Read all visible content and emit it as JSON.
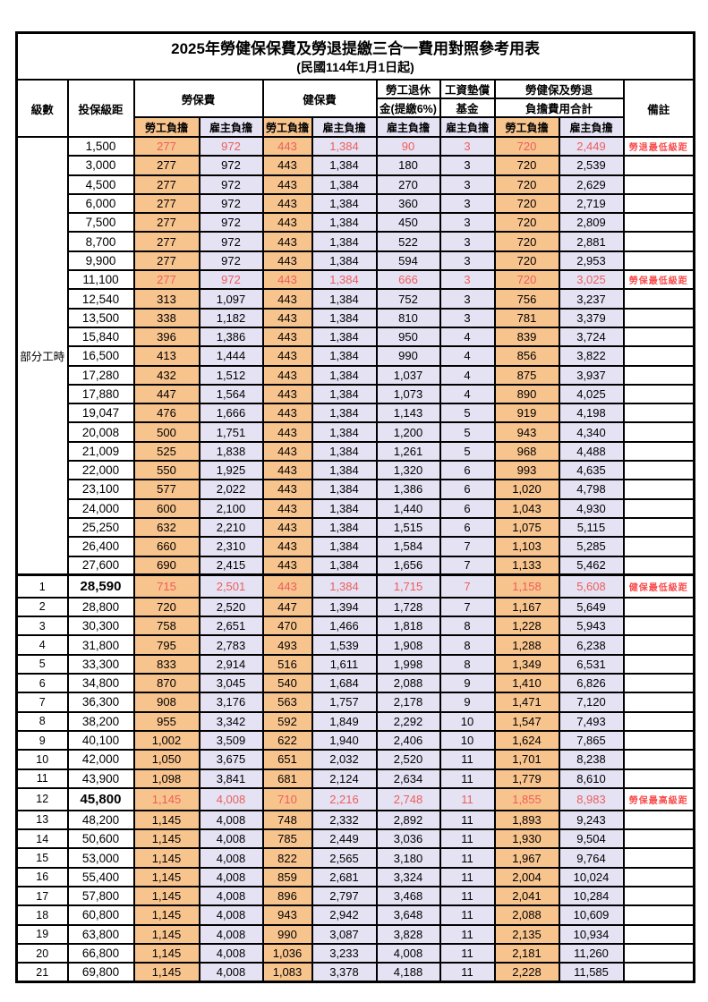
{
  "title": "2025年勞健保保費及勞退提繳三合一費用對照參考用表",
  "subtitle": "(民國114年1月1日起)",
  "header": {
    "level": "級數",
    "bracket": "投保級距",
    "labor_insurance": "勞保費",
    "health_insurance": "健保費",
    "pension_line1": "勞工退休",
    "pension_line2": "金(提繳6%)",
    "wage_fund_line1": "工資墊償",
    "wage_fund_line2": "基金",
    "total_line1": "勞健保及勞退",
    "total_line2": "負擔費用合計",
    "remarks": "備註",
    "employee": "勞工負擔",
    "employer": "雇主負擔"
  },
  "part_time_label": "部分工時",
  "colors": {
    "employee_bg": "#F8C48E",
    "employer_bg": "#E4E2F3",
    "highlight_text": "#ED5E5C",
    "remark_text": "#FB4B4B",
    "border": "#000000"
  },
  "rows": [
    {
      "level": "",
      "bracket": "1,500",
      "fees": [
        "277",
        "972",
        "443",
        "1,384",
        "90",
        "3",
        "720",
        "2,449"
      ],
      "remark": "勞退最低級距",
      "red": true,
      "bold": false
    },
    {
      "level": "",
      "bracket": "3,000",
      "fees": [
        "277",
        "972",
        "443",
        "1,384",
        "180",
        "3",
        "720",
        "2,539"
      ],
      "remark": "",
      "red": false,
      "bold": false
    },
    {
      "level": "",
      "bracket": "4,500",
      "fees": [
        "277",
        "972",
        "443",
        "1,384",
        "270",
        "3",
        "720",
        "2,629"
      ],
      "remark": "",
      "red": false,
      "bold": false
    },
    {
      "level": "",
      "bracket": "6,000",
      "fees": [
        "277",
        "972",
        "443",
        "1,384",
        "360",
        "3",
        "720",
        "2,719"
      ],
      "remark": "",
      "red": false,
      "bold": false
    },
    {
      "level": "",
      "bracket": "7,500",
      "fees": [
        "277",
        "972",
        "443",
        "1,384",
        "450",
        "3",
        "720",
        "2,809"
      ],
      "remark": "",
      "red": false,
      "bold": false
    },
    {
      "level": "",
      "bracket": "8,700",
      "fees": [
        "277",
        "972",
        "443",
        "1,384",
        "522",
        "3",
        "720",
        "2,881"
      ],
      "remark": "",
      "red": false,
      "bold": false
    },
    {
      "level": "",
      "bracket": "9,900",
      "fees": [
        "277",
        "972",
        "443",
        "1,384",
        "594",
        "3",
        "720",
        "2,953"
      ],
      "remark": "",
      "red": false,
      "bold": false
    },
    {
      "level": "",
      "bracket": "11,100",
      "fees": [
        "277",
        "972",
        "443",
        "1,384",
        "666",
        "3",
        "720",
        "3,025"
      ],
      "remark": "勞保最低級距",
      "red": true,
      "bold": false
    },
    {
      "level": "",
      "bracket": "12,540",
      "fees": [
        "313",
        "1,097",
        "443",
        "1,384",
        "752",
        "3",
        "756",
        "3,237"
      ],
      "remark": "",
      "red": false,
      "bold": false
    },
    {
      "level": "",
      "bracket": "13,500",
      "fees": [
        "338",
        "1,182",
        "443",
        "1,384",
        "810",
        "3",
        "781",
        "3,379"
      ],
      "remark": "",
      "red": false,
      "bold": false
    },
    {
      "level": "",
      "bracket": "15,840",
      "fees": [
        "396",
        "1,386",
        "443",
        "1,384",
        "950",
        "4",
        "839",
        "3,724"
      ],
      "remark": "",
      "red": false,
      "bold": false
    },
    {
      "level": "",
      "bracket": "16,500",
      "fees": [
        "413",
        "1,444",
        "443",
        "1,384",
        "990",
        "4",
        "856",
        "3,822"
      ],
      "remark": "",
      "red": false,
      "bold": false
    },
    {
      "level": "",
      "bracket": "17,280",
      "fees": [
        "432",
        "1,512",
        "443",
        "1,384",
        "1,037",
        "4",
        "875",
        "3,937"
      ],
      "remark": "",
      "red": false,
      "bold": false
    },
    {
      "level": "",
      "bracket": "17,880",
      "fees": [
        "447",
        "1,564",
        "443",
        "1,384",
        "1,073",
        "4",
        "890",
        "4,025"
      ],
      "remark": "",
      "red": false,
      "bold": false
    },
    {
      "level": "",
      "bracket": "19,047",
      "fees": [
        "476",
        "1,666",
        "443",
        "1,384",
        "1,143",
        "5",
        "919",
        "4,198"
      ],
      "remark": "",
      "red": false,
      "bold": false
    },
    {
      "level": "",
      "bracket": "20,008",
      "fees": [
        "500",
        "1,751",
        "443",
        "1,384",
        "1,200",
        "5",
        "943",
        "4,340"
      ],
      "remark": "",
      "red": false,
      "bold": false
    },
    {
      "level": "",
      "bracket": "21,009",
      "fees": [
        "525",
        "1,838",
        "443",
        "1,384",
        "1,261",
        "5",
        "968",
        "4,488"
      ],
      "remark": "",
      "red": false,
      "bold": false
    },
    {
      "level": "",
      "bracket": "22,000",
      "fees": [
        "550",
        "1,925",
        "443",
        "1,384",
        "1,320",
        "6",
        "993",
        "4,635"
      ],
      "remark": "",
      "red": false,
      "bold": false
    },
    {
      "level": "",
      "bracket": "23,100",
      "fees": [
        "577",
        "2,022",
        "443",
        "1,384",
        "1,386",
        "6",
        "1,020",
        "4,798"
      ],
      "remark": "",
      "red": false,
      "bold": false
    },
    {
      "level": "",
      "bracket": "24,000",
      "fees": [
        "600",
        "2,100",
        "443",
        "1,384",
        "1,440",
        "6",
        "1,043",
        "4,930"
      ],
      "remark": "",
      "red": false,
      "bold": false
    },
    {
      "level": "",
      "bracket": "25,250",
      "fees": [
        "632",
        "2,210",
        "443",
        "1,384",
        "1,515",
        "6",
        "1,075",
        "5,115"
      ],
      "remark": "",
      "red": false,
      "bold": false
    },
    {
      "level": "",
      "bracket": "26,400",
      "fees": [
        "660",
        "2,310",
        "443",
        "1,384",
        "1,584",
        "7",
        "1,103",
        "5,285"
      ],
      "remark": "",
      "red": false,
      "bold": false
    },
    {
      "level": "",
      "bracket": "27,600",
      "fees": [
        "690",
        "2,415",
        "443",
        "1,384",
        "1,656",
        "7",
        "1,133",
        "5,462"
      ],
      "remark": "",
      "red": false,
      "bold": false
    },
    {
      "level": "1",
      "bracket": "28,590",
      "fees": [
        "715",
        "2,501",
        "443",
        "1,384",
        "1,715",
        "7",
        "1,158",
        "5,608"
      ],
      "remark": "健保最低級距",
      "red": true,
      "bold": true
    },
    {
      "level": "2",
      "bracket": "28,800",
      "fees": [
        "720",
        "2,520",
        "447",
        "1,394",
        "1,728",
        "7",
        "1,167",
        "5,649"
      ],
      "remark": "",
      "red": false,
      "bold": false
    },
    {
      "level": "3",
      "bracket": "30,300",
      "fees": [
        "758",
        "2,651",
        "470",
        "1,466",
        "1,818",
        "8",
        "1,228",
        "5,943"
      ],
      "remark": "",
      "red": false,
      "bold": false
    },
    {
      "level": "4",
      "bracket": "31,800",
      "fees": [
        "795",
        "2,783",
        "493",
        "1,539",
        "1,908",
        "8",
        "1,288",
        "6,238"
      ],
      "remark": "",
      "red": false,
      "bold": false
    },
    {
      "level": "5",
      "bracket": "33,300",
      "fees": [
        "833",
        "2,914",
        "516",
        "1,611",
        "1,998",
        "8",
        "1,349",
        "6,531"
      ],
      "remark": "",
      "red": false,
      "bold": false
    },
    {
      "level": "6",
      "bracket": "34,800",
      "fees": [
        "870",
        "3,045",
        "540",
        "1,684",
        "2,088",
        "9",
        "1,410",
        "6,826"
      ],
      "remark": "",
      "red": false,
      "bold": false
    },
    {
      "level": "7",
      "bracket": "36,300",
      "fees": [
        "908",
        "3,176",
        "563",
        "1,757",
        "2,178",
        "9",
        "1,471",
        "7,120"
      ],
      "remark": "",
      "red": false,
      "bold": false
    },
    {
      "level": "8",
      "bracket": "38,200",
      "fees": [
        "955",
        "3,342",
        "592",
        "1,849",
        "2,292",
        "10",
        "1,547",
        "7,493"
      ],
      "remark": "",
      "red": false,
      "bold": false
    },
    {
      "level": "9",
      "bracket": "40,100",
      "fees": [
        "1,002",
        "3,509",
        "622",
        "1,940",
        "2,406",
        "10",
        "1,624",
        "7,865"
      ],
      "remark": "",
      "red": false,
      "bold": false
    },
    {
      "level": "10",
      "bracket": "42,000",
      "fees": [
        "1,050",
        "3,675",
        "651",
        "2,032",
        "2,520",
        "11",
        "1,701",
        "8,238"
      ],
      "remark": "",
      "red": false,
      "bold": false
    },
    {
      "level": "11",
      "bracket": "43,900",
      "fees": [
        "1,098",
        "3,841",
        "681",
        "2,124",
        "2,634",
        "11",
        "1,779",
        "8,610"
      ],
      "remark": "",
      "red": false,
      "bold": false
    },
    {
      "level": "12",
      "bracket": "45,800",
      "fees": [
        "1,145",
        "4,008",
        "710",
        "2,216",
        "2,748",
        "11",
        "1,855",
        "8,983"
      ],
      "remark": "勞保最高級距",
      "red": true,
      "bold": true
    },
    {
      "level": "13",
      "bracket": "48,200",
      "fees": [
        "1,145",
        "4,008",
        "748",
        "2,332",
        "2,892",
        "11",
        "1,893",
        "9,243"
      ],
      "remark": "",
      "red": false,
      "bold": false
    },
    {
      "level": "14",
      "bracket": "50,600",
      "fees": [
        "1,145",
        "4,008",
        "785",
        "2,449",
        "3,036",
        "11",
        "1,930",
        "9,504"
      ],
      "remark": "",
      "red": false,
      "bold": false
    },
    {
      "level": "15",
      "bracket": "53,000",
      "fees": [
        "1,145",
        "4,008",
        "822",
        "2,565",
        "3,180",
        "11",
        "1,967",
        "9,764"
      ],
      "remark": "",
      "red": false,
      "bold": false
    },
    {
      "level": "16",
      "bracket": "55,400",
      "fees": [
        "1,145",
        "4,008",
        "859",
        "2,681",
        "3,324",
        "11",
        "2,004",
        "10,024"
      ],
      "remark": "",
      "red": false,
      "bold": false
    },
    {
      "level": "17",
      "bracket": "57,800",
      "fees": [
        "1,145",
        "4,008",
        "896",
        "2,797",
        "3,468",
        "11",
        "2,041",
        "10,284"
      ],
      "remark": "",
      "red": false,
      "bold": false
    },
    {
      "level": "18",
      "bracket": "60,800",
      "fees": [
        "1,145",
        "4,008",
        "943",
        "2,942",
        "3,648",
        "11",
        "2,088",
        "10,609"
      ],
      "remark": "",
      "red": false,
      "bold": false
    },
    {
      "level": "19",
      "bracket": "63,800",
      "fees": [
        "1,145",
        "4,008",
        "990",
        "3,087",
        "3,828",
        "11",
        "2,135",
        "10,934"
      ],
      "remark": "",
      "red": false,
      "bold": false
    },
    {
      "level": "20",
      "bracket": "66,800",
      "fees": [
        "1,145",
        "4,008",
        "1,036",
        "3,233",
        "4,008",
        "11",
        "2,181",
        "11,260"
      ],
      "remark": "",
      "red": false,
      "bold": false
    },
    {
      "level": "21",
      "bracket": "69,800",
      "fees": [
        "1,145",
        "4,008",
        "1,083",
        "3,378",
        "4,188",
        "11",
        "2,228",
        "11,585"
      ],
      "remark": "",
      "red": false,
      "bold": false
    }
  ]
}
